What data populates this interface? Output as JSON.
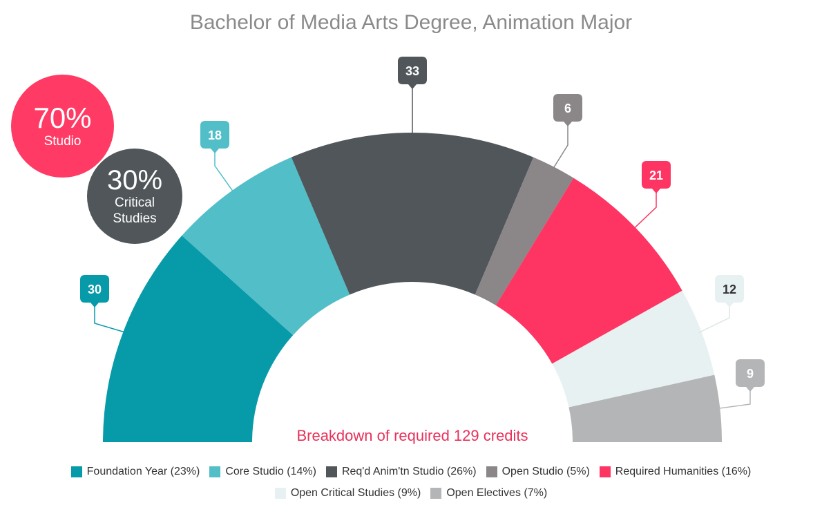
{
  "chart_data": {
    "type": "pie",
    "title": "Bachelor of Media Arts Degree, Animation Major",
    "subtitle": "Breakdown of required 129 credits",
    "subtitle_color": "#e8315b",
    "legend_placement": "bottom",
    "series": [
      {
        "name": "Foundation Year (23%)",
        "value": 30,
        "label": "30",
        "color": "#079aa8",
        "label_bg": "#079aa8",
        "label_text": "#ffffff"
      },
      {
        "name": "Core Studio (14%)",
        "value": 18,
        "label": "18",
        "color": "#52bec8",
        "label_bg": "#52bec8",
        "label_text": "#ffffff"
      },
      {
        "name": "Req'd Anim'tn Studio (26%)",
        "value": 33,
        "label": "33",
        "color": "#505659",
        "label_bg": "#505659",
        "label_text": "#ffffff"
      },
      {
        "name": "Open Studio (5%)",
        "value": 6,
        "label": "6",
        "color": "#8b8688",
        "label_bg": "#8b8688",
        "label_text": "#ffffff"
      },
      {
        "name": "Required Humanities (16%)",
        "value": 21,
        "label": "21",
        "color": "#fe3462",
        "label_bg": "#fe3462",
        "label_text": "#ffffff"
      },
      {
        "name": "Open Critical Studies (9%)",
        "value": 12,
        "label": "12",
        "color": "#e8f1f1",
        "label_bg": "#e8f1f1",
        "label_text": "#333333"
      },
      {
        "name": "Open Electives (7%)",
        "value": 9,
        "label": "9",
        "color": "#b4b5b7",
        "label_bg": "#b4b5b7",
        "label_text": "#ffffff"
      }
    ]
  },
  "badges": {
    "studio": {
      "percent": "70%",
      "label": "Studio",
      "color": "#ff3a64"
    },
    "critical": {
      "percent": "30%",
      "label_line1": "Critical",
      "label_line2": "Studies",
      "color": "#505659"
    }
  }
}
